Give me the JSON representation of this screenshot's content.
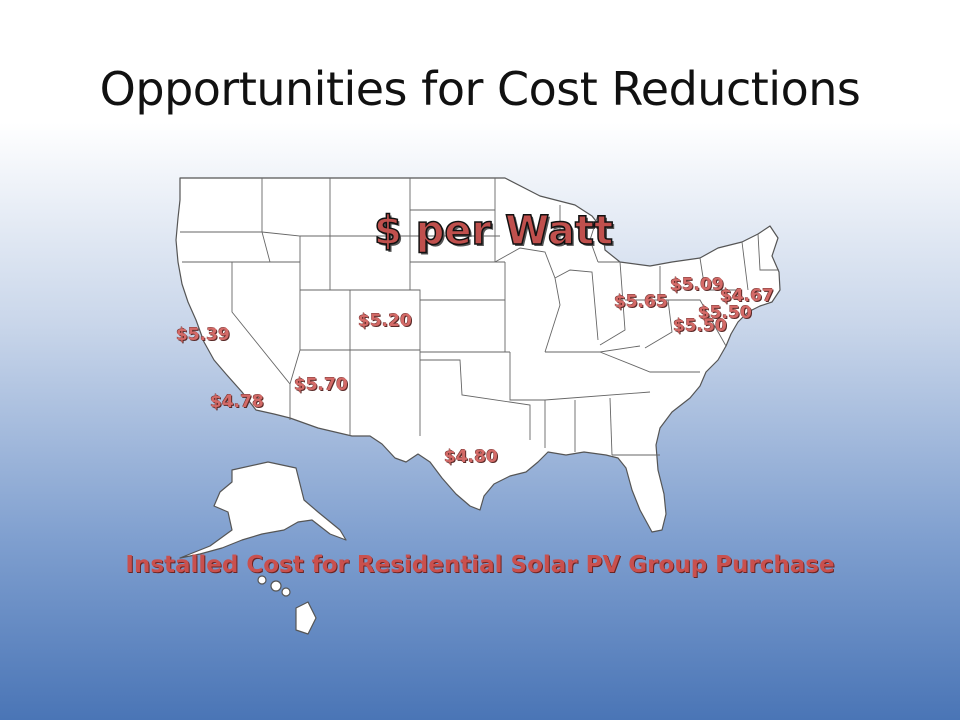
{
  "slide": {
    "title": "Opportunities for Cost Reductions",
    "map_label": "$ per Watt",
    "footer": "Installed Cost for Residential Solar PV Group Purchase"
  },
  "prices": {
    "california_north": "$5.39",
    "california_south": "$4.78",
    "arizona": "$5.70",
    "colorado": "$5.20",
    "texas": "$4.80",
    "ohio": "$5.65",
    "new_york": "$5.09",
    "connecticut": "$4.67",
    "new_jersey": "$5.50",
    "maryland": "$5.50"
  },
  "colors": {
    "price_text": "#d46a67",
    "label_red": "#c0504d",
    "background_bottom": "#4a75b6"
  }
}
